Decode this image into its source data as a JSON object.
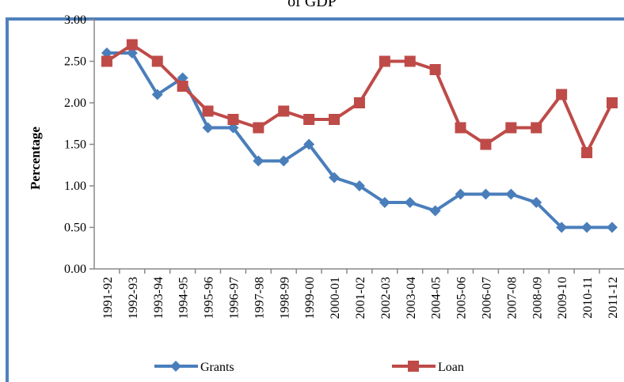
{
  "chart_data": {
    "type": "line",
    "title": "of GDP",
    "y_label": "Percentage",
    "categories": [
      "1991-92",
      "1992-93",
      "1993-94",
      "1994-95",
      "1995-96",
      "1996-97",
      "1997-98",
      "1998-99",
      "1999-00",
      "2000-01",
      "2001-02",
      "2002-03",
      "2003-04",
      "2004-05",
      "2005-06",
      "2006-07",
      "2007-08",
      "2008-09",
      "2009-10",
      "2010-11",
      "2011-12"
    ],
    "series": [
      {
        "name": "Grants",
        "color": "#4a7ebb",
        "marker": "diamond",
        "values": [
          2.6,
          2.6,
          2.1,
          2.3,
          1.7,
          1.7,
          1.3,
          1.3,
          1.5,
          1.1,
          1.0,
          0.8,
          0.8,
          0.7,
          0.9,
          0.9,
          0.9,
          0.8,
          0.5,
          0.5,
          0.5
        ]
      },
      {
        "name": "Loan",
        "color": "#be4b48",
        "marker": "square",
        "values": [
          2.5,
          2.7,
          2.5,
          2.2,
          1.9,
          1.8,
          1.7,
          1.9,
          1.8,
          1.8,
          2.0,
          2.5,
          2.5,
          2.4,
          1.7,
          1.5,
          1.7,
          1.7,
          2.1,
          1.4,
          2.0
        ]
      }
    ],
    "ylim": [
      0,
      3
    ],
    "yticks": [
      {
        "value": 0,
        "label": "0.00"
      },
      {
        "value": 0.5,
        "label": "0.50"
      },
      {
        "value": 1,
        "label": "1.00"
      },
      {
        "value": 1.5,
        "label": "1.50"
      },
      {
        "value": 2,
        "label": "2.00"
      },
      {
        "value": 2.5,
        "label": "2.50"
      },
      {
        "value": 3,
        "label": "3.00"
      }
    ],
    "legend": "bottom"
  }
}
